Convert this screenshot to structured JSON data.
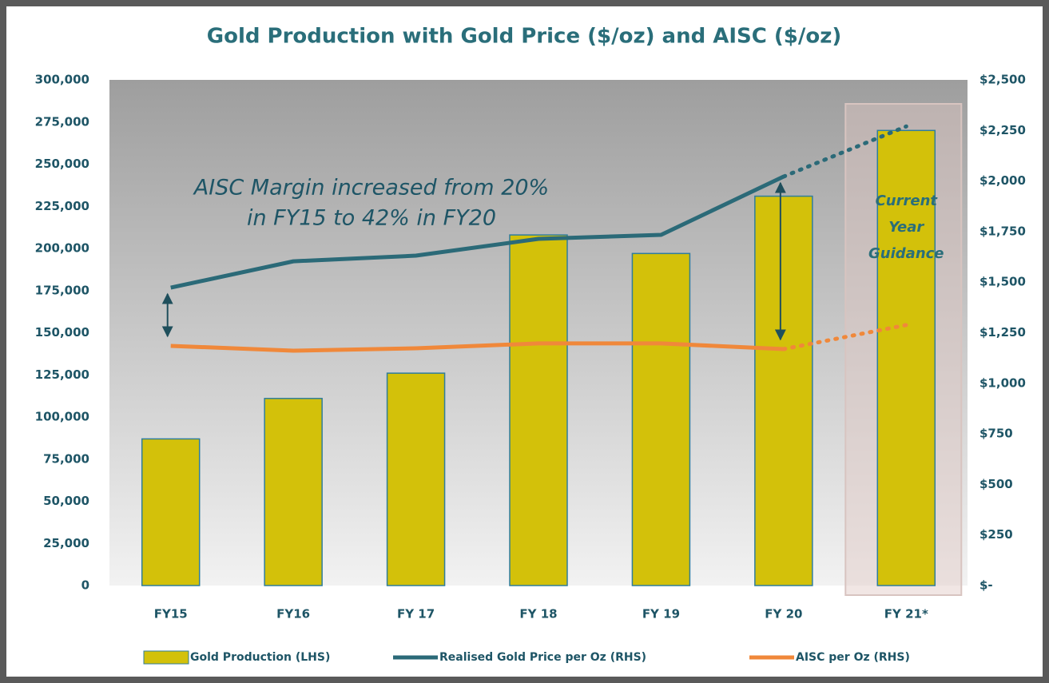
{
  "chart_data": {
    "type": "combo",
    "title": "Gold Production with Gold Price ($/oz) and AISC ($/oz)",
    "categories": [
      "FY15",
      "FY16",
      "FY 17",
      "FY 18",
      "FY 19",
      "FY 20",
      "FY 21*"
    ],
    "series": [
      {
        "name": "Gold Production (LHS)",
        "type": "bar",
        "color": "#d3c10a",
        "values": [
          87000,
          111000,
          126000,
          208000,
          197000,
          231000,
          270000
        ]
      },
      {
        "name": "Realised Gold Price per Oz (RHS)",
        "type": "line",
        "axis": "y2",
        "color": "#2b6a78",
        "last_segment_style": "dotted",
        "values": [
          1473,
          1603,
          1631,
          1714,
          1734,
          2022,
          2270
        ]
      },
      {
        "name": "AISC per Oz (RHS)",
        "type": "line",
        "axis": "y2",
        "color": "#f0883a",
        "last_segment_style": "dotted",
        "values": [
          1185,
          1161,
          1173,
          1197,
          1197,
          1169,
          1288
        ]
      }
    ],
    "ylim": [
      0,
      300000
    ],
    "yticks": [
      0,
      {
        "value": 25000,
        "label": "25,000"
      },
      {
        "value": 50000,
        "label": "50,000"
      },
      {
        "value": 75000,
        "label": "75,000"
      },
      {
        "value": 100000,
        "label": "100,000"
      },
      {
        "value": 125000,
        "label": "125,000"
      },
      {
        "value": 150000,
        "label": "150,000"
      },
      {
        "value": 175000,
        "label": "175,000"
      },
      {
        "value": 200000,
        "label": "200,000"
      },
      {
        "value": 225000,
        "label": "225,000"
      },
      {
        "value": 250000,
        "label": "250,000"
      },
      {
        "value": 275000,
        "label": "275,000"
      },
      {
        "value": 300000,
        "label": "300,000"
      }
    ],
    "y2lim": [
      0,
      2500
    ],
    "y2ticks": [
      {
        "value": 0,
        "label": "$-"
      },
      {
        "value": 250,
        "label": "$250"
      },
      {
        "value": 500,
        "label": "$500"
      },
      {
        "value": 750,
        "label": "$750"
      },
      {
        "value": 1000,
        "label": "$1,000"
      },
      {
        "value": 1250,
        "label": "$1,250"
      },
      {
        "value": 1500,
        "label": "$1,500"
      },
      {
        "value": 1750,
        "label": "$1,750"
      },
      {
        "value": 2000,
        "label": "$2,000"
      },
      {
        "value": 2250,
        "label": "$2,250"
      },
      {
        "value": 2500,
        "label": "$2,500"
      }
    ],
    "annotations": {
      "margin": [
        "AISC Margin increased from 20%",
        "in FY15 to 42% in FY20"
      ],
      "guidance": [
        "Current",
        "Year",
        "Guidance"
      ]
    },
    "legend": "bottom"
  }
}
